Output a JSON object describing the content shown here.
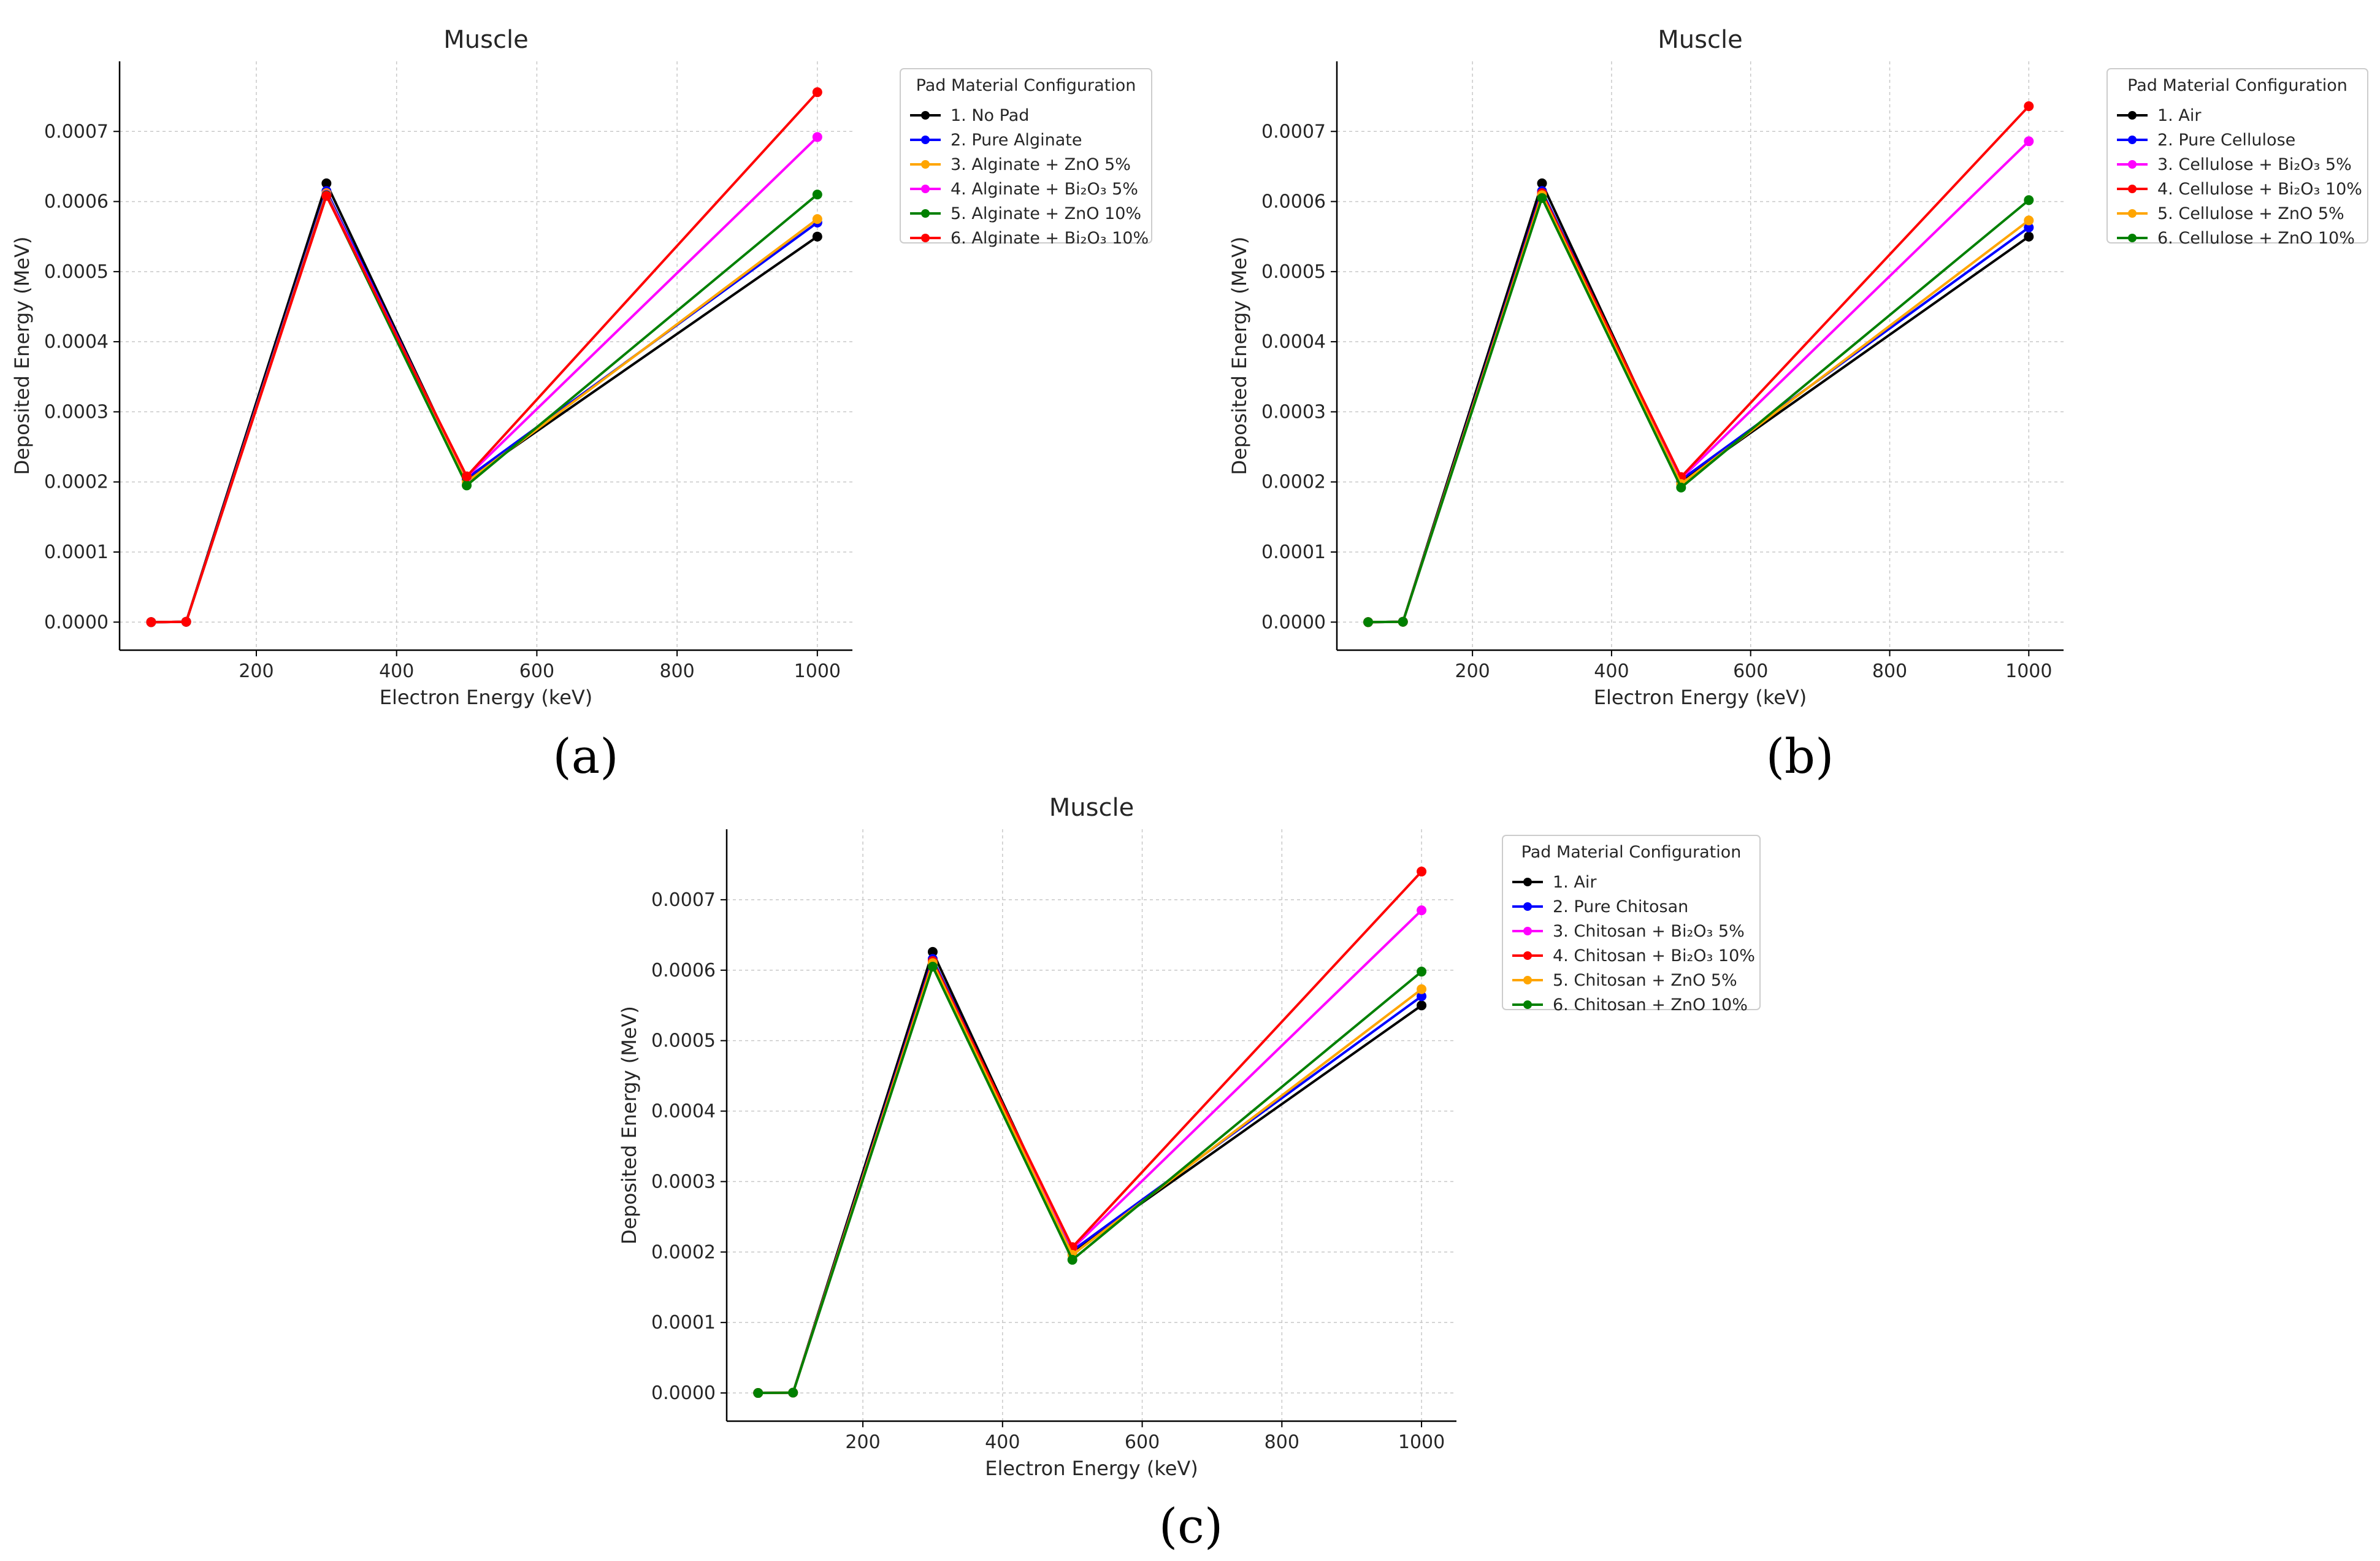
{
  "chart_data": [
    {
      "type": "line",
      "panel_label": "(a)",
      "title": "Muscle",
      "xlabel": "Electron Energy (keV)",
      "ylabel": "Deposited Energy (MeV)",
      "xlim": [
        5,
        1050
      ],
      "ylim": [
        -4e-05,
        0.0008
      ],
      "xticks": [
        200,
        400,
        600,
        800,
        1000
      ],
      "xtick_labels": [
        "200",
        "400",
        "600",
        "800",
        "1000"
      ],
      "yticks": [
        0,
        0.0001,
        0.0002,
        0.0003,
        0.0004,
        0.0005,
        0.0006,
        0.0007
      ],
      "ytick_labels": [
        "0.0000",
        "0.0001",
        "0.0002",
        "0.0003",
        "0.0004",
        "0.0005",
        "0.0006",
        "0.0007"
      ],
      "grid": true,
      "legend_title": "Pad Material Configuration",
      "legend_position": "outside-right",
      "x": [
        50,
        100,
        300,
        500,
        1000
      ],
      "series": [
        {
          "name": "1. No Pad",
          "color": "#000000",
          "values": [
            0,
            5e-07,
            0.000626,
            0.000203,
            0.00055
          ]
        },
        {
          "name": "2. Pure Alginate",
          "color": "#0000ff",
          "values": [
            0,
            5e-07,
            0.000615,
            0.000205,
            0.00057
          ]
        },
        {
          "name": "3. Alginate + ZnO 5%",
          "color": "#ffa500",
          "values": [
            0,
            5e-07,
            0.000612,
            0.0002,
            0.000575
          ]
        },
        {
          "name": "4. Alginate + Bi₂O₃ 5%",
          "color": "#ff00ff",
          "values": [
            0,
            5e-07,
            0.00061,
            0.000207,
            0.000692
          ]
        },
        {
          "name": "5. Alginate + ZnO 10%",
          "color": "#008000",
          "values": [
            0,
            5e-07,
            0.000609,
            0.000195,
            0.00061
          ]
        },
        {
          "name": "6. Alginate + Bi₂O₃ 10%",
          "color": "#ff0000",
          "values": [
            0,
            5e-07,
            0.000608,
            0.000208,
            0.000756
          ]
        }
      ]
    },
    {
      "type": "line",
      "panel_label": "(b)",
      "title": "Muscle",
      "xlabel": "Electron Energy (keV)",
      "ylabel": "Deposited Energy (MeV)",
      "xlim": [
        5,
        1050
      ],
      "ylim": [
        -4e-05,
        0.0008
      ],
      "xticks": [
        200,
        400,
        600,
        800,
        1000
      ],
      "xtick_labels": [
        "200",
        "400",
        "600",
        "800",
        "1000"
      ],
      "yticks": [
        0,
        0.0001,
        0.0002,
        0.0003,
        0.0004,
        0.0005,
        0.0006,
        0.0007
      ],
      "ytick_labels": [
        "0.0000",
        "0.0001",
        "0.0002",
        "0.0003",
        "0.0004",
        "0.0005",
        "0.0006",
        "0.0007"
      ],
      "grid": true,
      "legend_title": "Pad Material Configuration",
      "legend_position": "outside-right",
      "x": [
        50,
        100,
        300,
        500,
        1000
      ],
      "series": [
        {
          "name": "1. Air",
          "color": "#000000",
          "values": [
            0,
            5e-07,
            0.000626,
            0.0002,
            0.00055
          ]
        },
        {
          "name": "2. Pure Cellulose",
          "color": "#0000ff",
          "values": [
            0,
            5e-07,
            0.000615,
            0.000203,
            0.000563
          ]
        },
        {
          "name": "3. Cellulose + Bi₂O₃ 5%",
          "color": "#ff00ff",
          "values": [
            0,
            5e-07,
            0.00061,
            0.000205,
            0.000686
          ]
        },
        {
          "name": "4. Cellulose + Bi₂O₃ 10%",
          "color": "#ff0000",
          "values": [
            0,
            5e-07,
            0.000612,
            0.000207,
            0.000736
          ]
        },
        {
          "name": "5. Cellulose + ZnO 5%",
          "color": "#ffa500",
          "values": [
            0,
            5e-07,
            0.000609,
            0.000197,
            0.000573
          ]
        },
        {
          "name": "6. Cellulose + ZnO 10%",
          "color": "#008000",
          "values": [
            0,
            5e-07,
            0.000605,
            0.000192,
            0.000602
          ]
        }
      ]
    },
    {
      "type": "line",
      "panel_label": "(c)",
      "title": "Muscle",
      "xlabel": "Electron Energy (keV)",
      "ylabel": "Deposited Energy (MeV)",
      "xlim": [
        5,
        1050
      ],
      "ylim": [
        -4e-05,
        0.0008
      ],
      "xticks": [
        200,
        400,
        600,
        800,
        1000
      ],
      "xtick_labels": [
        "200",
        "400",
        "600",
        "800",
        "1000"
      ],
      "yticks": [
        0,
        0.0001,
        0.0002,
        0.0003,
        0.0004,
        0.0005,
        0.0006,
        0.0007
      ],
      "ytick_labels": [
        "0.0000",
        "0.0001",
        "0.0002",
        "0.0003",
        "0.0004",
        "0.0005",
        "0.0006",
        "0.0007"
      ],
      "grid": true,
      "legend_title": "Pad Material Configuration",
      "legend_position": "outside-right",
      "x": [
        50,
        100,
        300,
        500,
        1000
      ],
      "series": [
        {
          "name": "1. Air",
          "color": "#000000",
          "values": [
            0,
            5e-07,
            0.000626,
            0.0002,
            0.00055
          ]
        },
        {
          "name": "2. Pure Chitosan",
          "color": "#0000ff",
          "values": [
            0,
            5e-07,
            0.000616,
            0.000202,
            0.000563
          ]
        },
        {
          "name": "3. Chitosan + Bi₂O₃ 5%",
          "color": "#ff00ff",
          "values": [
            0,
            5e-07,
            0.000611,
            0.000205,
            0.000685
          ]
        },
        {
          "name": "4. Chitosan + Bi₂O₃ 10%",
          "color": "#ff0000",
          "values": [
            0,
            5e-07,
            0.000613,
            0.000207,
            0.00074
          ]
        },
        {
          "name": "5. Chitosan + ZnO 5%",
          "color": "#ffa500",
          "values": [
            0,
            5e-07,
            0.00061,
            0.000196,
            0.000573
          ]
        },
        {
          "name": "6. Chitosan + ZnO 10%",
          "color": "#008000",
          "values": [
            0,
            5e-07,
            0.000605,
            0.000189,
            0.000598
          ]
        }
      ]
    }
  ]
}
